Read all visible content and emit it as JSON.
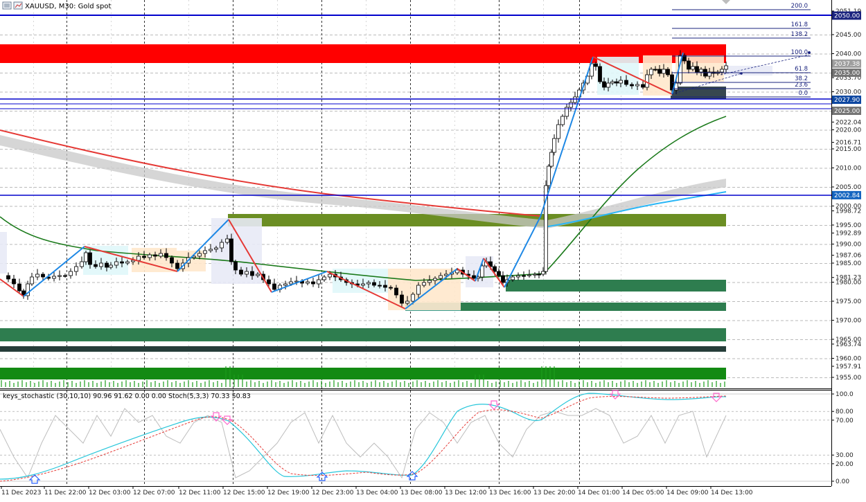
{
  "header": {
    "symbol_title": "XAUUSD, M30:  Gold spot",
    "menu_icon": "hamburger-menu-icon",
    "chart_icon": "chart-window-icon"
  },
  "indicator": {
    "title": "keys_stochastic (30,10,10) 90.96 91.62 0.00 0.00 Stoch(5,3,3) 70.33 50.83"
  },
  "colors": {
    "resistance_zone": "#ff0000",
    "support_green_dark": "#2e7d4f",
    "support_green_light": "#6b8e23",
    "blue_line": "#0000cc",
    "zigzag_up": "#1e88e5",
    "zigzag_down": "#e53935",
    "ma_green": "#1b7a1b",
    "ma_red": "#e53935",
    "ma_cyan": "#29b6f6",
    "band_gray": "#c8c8c8",
    "stoch_cyan": "#26c6da",
    "stoch_red": "#e53935",
    "stoch_gray": "#bdbdbd",
    "volume_green": "#1b9c1b",
    "arrow_pink": "#ff66cc",
    "arrow_blue": "#2962ff"
  },
  "price_axis": {
    "labels": [
      "2051.19",
      "2045.00",
      "2040.00",
      "2033.70",
      "2030.00",
      "2022.04",
      "2020.00",
      "2016.71",
      "2015.00",
      "2010.00",
      "2005.00",
      "2000.00",
      "1998.72",
      "1995.00",
      "1992.89",
      "1990.00",
      "1987.06",
      "1985.00",
      "1981.23",
      "1980.00",
      "1975.00",
      "1970.00",
      "1965.00",
      "1963.74",
      "1960.00",
      "1957.91",
      "1955.00"
    ],
    "tags": [
      {
        "text": "2050.00",
        "color": "#1a237e"
      },
      {
        "text": "2037.38",
        "color": "#9e9e9e"
      },
      {
        "text": "2035.00",
        "color": "#757575"
      },
      {
        "text": "2027.90",
        "color": "#0d47a1"
      },
      {
        "text": "2025.00",
        "color": "#757575"
      },
      {
        "text": "2002.84",
        "color": "#1565c0"
      }
    ]
  },
  "stoch_axis": {
    "labels": [
      "100.0",
      "80.00",
      "70.00",
      "30.00",
      "20.00",
      "0.00"
    ]
  },
  "time_axis": {
    "labels": [
      "11 Dec 2023",
      "11 Dec 22:00",
      "12 Dec 03:00",
      "12 Dec 07:00",
      "12 Dec 11:00",
      "12 Dec 15:00",
      "12 Dec 19:00",
      "12 Dec 23:00",
      "13 Dec 04:00",
      "13 Dec 08:00",
      "13 Dec 12:00",
      "13 Dec 16:00",
      "13 Dec 20:00",
      "14 Dec 01:00",
      "14 Dec 05:00",
      "14 Dec 09:00",
      "14 Dec 13:00"
    ]
  },
  "fibonacci": {
    "levels": [
      "200.0",
      "161.8",
      "138.2",
      "100.0",
      "61.8",
      "38.2",
      "23.6",
      "0.0"
    ]
  }
}
